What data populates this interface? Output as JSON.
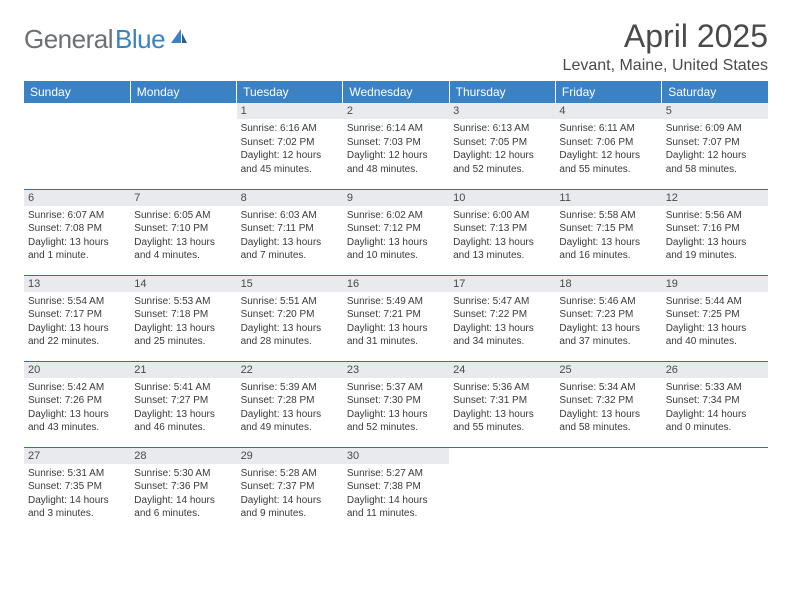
{
  "brand": {
    "part1": "General",
    "part2": "Blue"
  },
  "title": "April 2025",
  "location": "Levant, Maine, United States",
  "colors": {
    "header_bg": "#3b82c4",
    "header_text": "#ffffff",
    "daynum_bg": "#e8eaed",
    "row_border": "#3b6ea3",
    "text": "#3a3a3a",
    "title_text": "#4a4a4a"
  },
  "columns": [
    "Sunday",
    "Monday",
    "Tuesday",
    "Wednesday",
    "Thursday",
    "Friday",
    "Saturday"
  ],
  "weeks": [
    [
      null,
      null,
      {
        "n": "1",
        "sr": "Sunrise: 6:16 AM",
        "ss": "Sunset: 7:02 PM",
        "dl": "Daylight: 12 hours and 45 minutes."
      },
      {
        "n": "2",
        "sr": "Sunrise: 6:14 AM",
        "ss": "Sunset: 7:03 PM",
        "dl": "Daylight: 12 hours and 48 minutes."
      },
      {
        "n": "3",
        "sr": "Sunrise: 6:13 AM",
        "ss": "Sunset: 7:05 PM",
        "dl": "Daylight: 12 hours and 52 minutes."
      },
      {
        "n": "4",
        "sr": "Sunrise: 6:11 AM",
        "ss": "Sunset: 7:06 PM",
        "dl": "Daylight: 12 hours and 55 minutes."
      },
      {
        "n": "5",
        "sr": "Sunrise: 6:09 AM",
        "ss": "Sunset: 7:07 PM",
        "dl": "Daylight: 12 hours and 58 minutes."
      }
    ],
    [
      {
        "n": "6",
        "sr": "Sunrise: 6:07 AM",
        "ss": "Sunset: 7:08 PM",
        "dl": "Daylight: 13 hours and 1 minute."
      },
      {
        "n": "7",
        "sr": "Sunrise: 6:05 AM",
        "ss": "Sunset: 7:10 PM",
        "dl": "Daylight: 13 hours and 4 minutes."
      },
      {
        "n": "8",
        "sr": "Sunrise: 6:03 AM",
        "ss": "Sunset: 7:11 PM",
        "dl": "Daylight: 13 hours and 7 minutes."
      },
      {
        "n": "9",
        "sr": "Sunrise: 6:02 AM",
        "ss": "Sunset: 7:12 PM",
        "dl": "Daylight: 13 hours and 10 minutes."
      },
      {
        "n": "10",
        "sr": "Sunrise: 6:00 AM",
        "ss": "Sunset: 7:13 PM",
        "dl": "Daylight: 13 hours and 13 minutes."
      },
      {
        "n": "11",
        "sr": "Sunrise: 5:58 AM",
        "ss": "Sunset: 7:15 PM",
        "dl": "Daylight: 13 hours and 16 minutes."
      },
      {
        "n": "12",
        "sr": "Sunrise: 5:56 AM",
        "ss": "Sunset: 7:16 PM",
        "dl": "Daylight: 13 hours and 19 minutes."
      }
    ],
    [
      {
        "n": "13",
        "sr": "Sunrise: 5:54 AM",
        "ss": "Sunset: 7:17 PM",
        "dl": "Daylight: 13 hours and 22 minutes."
      },
      {
        "n": "14",
        "sr": "Sunrise: 5:53 AM",
        "ss": "Sunset: 7:18 PM",
        "dl": "Daylight: 13 hours and 25 minutes."
      },
      {
        "n": "15",
        "sr": "Sunrise: 5:51 AM",
        "ss": "Sunset: 7:20 PM",
        "dl": "Daylight: 13 hours and 28 minutes."
      },
      {
        "n": "16",
        "sr": "Sunrise: 5:49 AM",
        "ss": "Sunset: 7:21 PM",
        "dl": "Daylight: 13 hours and 31 minutes."
      },
      {
        "n": "17",
        "sr": "Sunrise: 5:47 AM",
        "ss": "Sunset: 7:22 PM",
        "dl": "Daylight: 13 hours and 34 minutes."
      },
      {
        "n": "18",
        "sr": "Sunrise: 5:46 AM",
        "ss": "Sunset: 7:23 PM",
        "dl": "Daylight: 13 hours and 37 minutes."
      },
      {
        "n": "19",
        "sr": "Sunrise: 5:44 AM",
        "ss": "Sunset: 7:25 PM",
        "dl": "Daylight: 13 hours and 40 minutes."
      }
    ],
    [
      {
        "n": "20",
        "sr": "Sunrise: 5:42 AM",
        "ss": "Sunset: 7:26 PM",
        "dl": "Daylight: 13 hours and 43 minutes."
      },
      {
        "n": "21",
        "sr": "Sunrise: 5:41 AM",
        "ss": "Sunset: 7:27 PM",
        "dl": "Daylight: 13 hours and 46 minutes."
      },
      {
        "n": "22",
        "sr": "Sunrise: 5:39 AM",
        "ss": "Sunset: 7:28 PM",
        "dl": "Daylight: 13 hours and 49 minutes."
      },
      {
        "n": "23",
        "sr": "Sunrise: 5:37 AM",
        "ss": "Sunset: 7:30 PM",
        "dl": "Daylight: 13 hours and 52 minutes."
      },
      {
        "n": "24",
        "sr": "Sunrise: 5:36 AM",
        "ss": "Sunset: 7:31 PM",
        "dl": "Daylight: 13 hours and 55 minutes."
      },
      {
        "n": "25",
        "sr": "Sunrise: 5:34 AM",
        "ss": "Sunset: 7:32 PM",
        "dl": "Daylight: 13 hours and 58 minutes."
      },
      {
        "n": "26",
        "sr": "Sunrise: 5:33 AM",
        "ss": "Sunset: 7:34 PM",
        "dl": "Daylight: 14 hours and 0 minutes."
      }
    ],
    [
      {
        "n": "27",
        "sr": "Sunrise: 5:31 AM",
        "ss": "Sunset: 7:35 PM",
        "dl": "Daylight: 14 hours and 3 minutes."
      },
      {
        "n": "28",
        "sr": "Sunrise: 5:30 AM",
        "ss": "Sunset: 7:36 PM",
        "dl": "Daylight: 14 hours and 6 minutes."
      },
      {
        "n": "29",
        "sr": "Sunrise: 5:28 AM",
        "ss": "Sunset: 7:37 PM",
        "dl": "Daylight: 14 hours and 9 minutes."
      },
      {
        "n": "30",
        "sr": "Sunrise: 5:27 AM",
        "ss": "Sunset: 7:38 PM",
        "dl": "Daylight: 14 hours and 11 minutes."
      },
      null,
      null,
      null
    ]
  ]
}
